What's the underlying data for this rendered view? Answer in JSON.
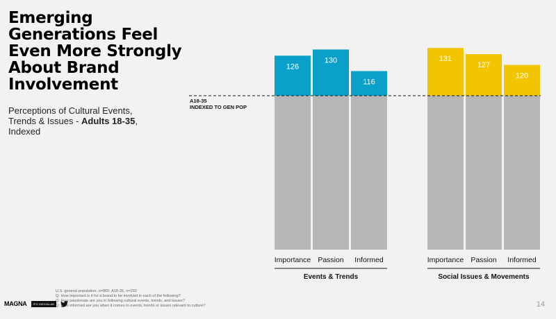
{
  "header": {
    "title": "Emerging\nGenerations Feel\nEven More Strongly\nAbout Brand\nInvolvement",
    "subtitle_lead": "Perceptions of Cultural Events, Trends & Issues - ",
    "subtitle_bold": "Adults 18-35",
    "subtitle_tail": ", Indexed"
  },
  "chart_data": {
    "type": "bar",
    "baseline": 100,
    "baseline_label": [
      "A18-35",
      "INDEXED TO GEN POP"
    ],
    "groups": [
      {
        "name": "Events & Trends",
        "color": "#0aa0c8",
        "categories": [
          "Importance",
          "Passion",
          "Informed"
        ],
        "values": [
          126,
          130,
          116
        ]
      },
      {
        "name": "Social Issues & Movements",
        "color": "#f2c500",
        "categories": [
          "Importance",
          "Passion",
          "Informed"
        ],
        "values": [
          131,
          127,
          120
        ]
      }
    ],
    "base_color": "#b7b7b7",
    "grid": false
  },
  "footer": {
    "notes": [
      "U.S. general population, n=865; A18-35, n=292",
      "Q: How important is it for a brand to be involved in each of the following?",
      "Q: How passionate are you in following cultural events, trends, and issues?",
      "Q: How informed are you when it comes to events, trends or issues relevant to culture?"
    ],
    "logo_text": "MAGNA",
    "logo_tag": "IPG MEDIALAB",
    "page_number": "14"
  }
}
